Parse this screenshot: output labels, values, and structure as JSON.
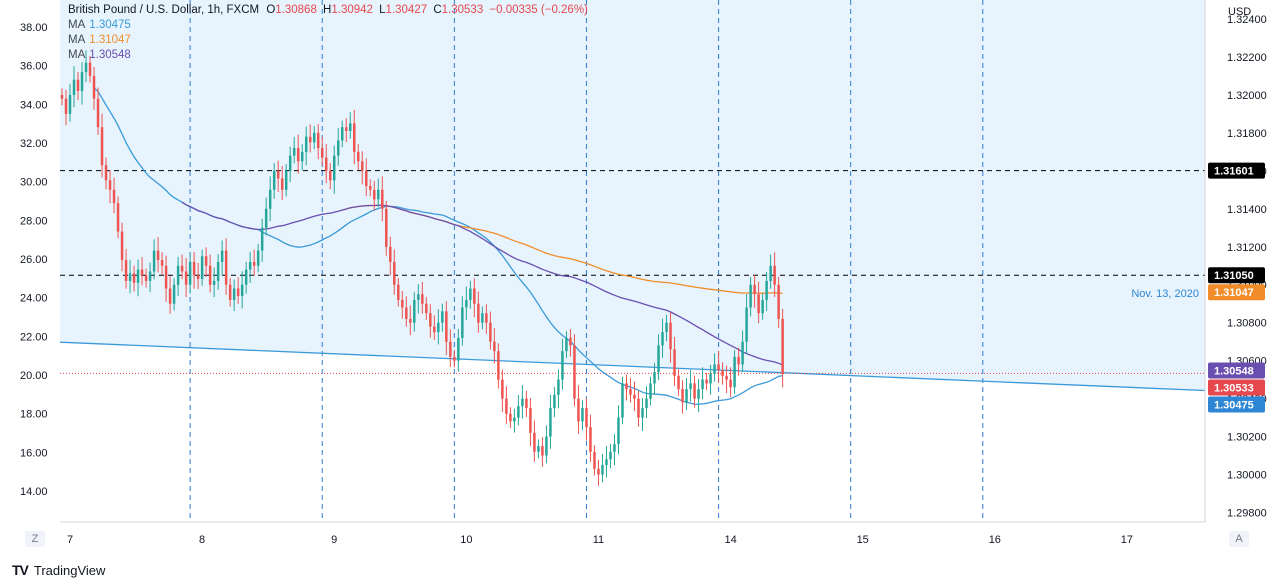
{
  "header": {
    "symbol_label": "British Pound / U.S. Dollar, 1h, FXCM",
    "o_label": "O",
    "o_value": "1.30868",
    "h_label": "H",
    "h_value": "1.30942",
    "l_label": "L",
    "l_value": "1.30427",
    "c_label": "C",
    "c_value": "1.30533",
    "change": "−0.00335 (−0.26%)"
  },
  "indicators": [
    {
      "label": "MA",
      "value": "1.30475",
      "color": "#3a9ad9"
    },
    {
      "label": "MA",
      "value": "1.31047",
      "color": "#f08c2a"
    },
    {
      "label": "MA",
      "value": "1.30548",
      "color": "#6a4fb0"
    }
  ],
  "currency": "USD",
  "annotation": "Nov. 13, 2020",
  "price_tags": [
    {
      "value": "1.31601",
      "bg": "#000000"
    },
    {
      "value": "1.31050",
      "bg": "#000000"
    },
    {
      "value": "1.31047",
      "bg": "#f08c2a"
    },
    {
      "value": "1.30548",
      "bg": "#6a4fb0"
    },
    {
      "value": "1.30533",
      "bg": "#e5484d"
    },
    {
      "value": "1.30475",
      "bg": "#2e86d4"
    }
  ],
  "buttons": {
    "zoom": "Z",
    "auto": "A"
  },
  "footer": {
    "brand": "TradingView",
    "logo": "TV"
  },
  "chart_data": {
    "type": "candlestick",
    "instrument": "British Pound / U.S. Dollar, 1h, FXCM",
    "right_axis": {
      "ticks": [
        "1.32400",
        "1.32200",
        "1.32000",
        "1.31800",
        "1.31600",
        "1.31400",
        "1.31200",
        "1.31000",
        "1.30800",
        "1.30600",
        "1.30400",
        "1.30200",
        "1.30000",
        "1.29800"
      ],
      "range": [
        1.2975,
        1.325
      ]
    },
    "left_axis": {
      "ticks": [
        "38.00",
        "36.00",
        "34.00",
        "32.00",
        "30.00",
        "28.00",
        "26.00",
        "24.00",
        "22.00",
        "20.00",
        "18.00",
        "16.00",
        "14.00"
      ],
      "range": [
        12.4,
        39.4
      ]
    },
    "x_ticks": [
      {
        "label": "7",
        "bar": 2
      },
      {
        "label": "8",
        "bar": 35
      },
      {
        "label": "9",
        "bar": 68
      },
      {
        "label": "10",
        "bar": 101
      },
      {
        "label": "11",
        "bar": 134
      },
      {
        "label": "14",
        "bar": 167
      },
      {
        "label": "15",
        "bar": 200
      },
      {
        "label": "16",
        "bar": 233
      },
      {
        "label": "17",
        "bar": 266
      }
    ],
    "session_lines_bar": [
      32,
      65,
      98,
      131,
      164,
      197,
      230
    ],
    "horizontal_levels": [
      1.31601,
      1.3105
    ],
    "trendline": {
      "start": [
        0,
        21.7
      ],
      "end": [
        286,
        19.2
      ]
    },
    "closes": [
      1.3198,
      1.319,
      1.32,
      1.3208,
      1.3202,
      1.3212,
      1.3217,
      1.321,
      1.3198,
      1.3183,
      1.3163,
      1.3155,
      1.315,
      1.3143,
      1.3128,
      1.3113,
      1.3102,
      1.3106,
      1.3101,
      1.3108,
      1.3105,
      1.3102,
      1.3107,
      1.3118,
      1.3113,
      1.311,
      1.3098,
      1.309,
      1.31,
      1.311,
      1.3107,
      1.31,
      1.3112,
      1.3105,
      1.3103,
      1.3115,
      1.311,
      1.31,
      1.3102,
      1.3112,
      1.3118,
      1.31,
      1.3092,
      1.3098,
      1.3094,
      1.31,
      1.3108,
      1.3112,
      1.311,
      1.3118,
      1.313,
      1.314,
      1.315,
      1.316,
      1.3156,
      1.315,
      1.316,
      1.3168,
      1.3172,
      1.3165,
      1.317,
      1.3178,
      1.3175,
      1.318,
      1.3172,
      1.3167,
      1.316,
      1.3155,
      1.3168,
      1.3176,
      1.3183,
      1.3181,
      1.3185,
      1.317,
      1.3165,
      1.316,
      1.3152,
      1.315,
      1.3145,
      1.315,
      1.314,
      1.312,
      1.3112,
      1.31,
      1.3092,
      1.3088,
      1.3082,
      1.308,
      1.3092,
      1.3095,
      1.309,
      1.3085,
      1.3078,
      1.3075,
      1.308,
      1.3086,
      1.307,
      1.3062,
      1.306,
      1.3072,
      1.3088,
      1.3092,
      1.3098,
      1.309,
      1.308,
      1.3085,
      1.308,
      1.307,
      1.3065,
      1.305,
      1.304,
      1.3032,
      1.3028,
      1.303,
      1.3036,
      1.304,
      1.3035,
      1.3022,
      1.3012,
      1.3015,
      1.301,
      1.302,
      1.3035,
      1.3042,
      1.305,
      1.3065,
      1.3072,
      1.3068,
      1.304,
      1.3028,
      1.3035,
      1.3025,
      1.3012,
      1.3003,
      1.3,
      1.3005,
      1.3008,
      1.3012,
      1.3016,
      1.303,
      1.3048,
      1.3045,
      1.3042,
      1.304,
      1.303,
      1.3035,
      1.304,
      1.3048,
      1.3054,
      1.3068,
      1.3075,
      1.308,
      1.3066,
      1.3052,
      1.3045,
      1.3038,
      1.3045,
      1.3048,
      1.304,
      1.3045,
      1.305,
      1.3048,
      1.3053,
      1.3058,
      1.3055,
      1.3052,
      1.305,
      1.3046,
      1.3062,
      1.3058,
      1.307,
      1.3088,
      1.31,
      1.3095,
      1.3085,
      1.3092,
      1.3102,
      1.311,
      1.31,
      1.3082,
      1.3053
    ],
    "series": [
      {
        "name": "MA",
        "value": 1.30475,
        "color": "#3a9ad9"
      },
      {
        "name": "MA",
        "value": 1.31047,
        "color": "#f08c2a"
      },
      {
        "name": "MA",
        "value": 1.30548,
        "color": "#6a4fb0"
      }
    ],
    "last_close": 1.30533,
    "annotation_text": "Nov. 13, 2020"
  }
}
